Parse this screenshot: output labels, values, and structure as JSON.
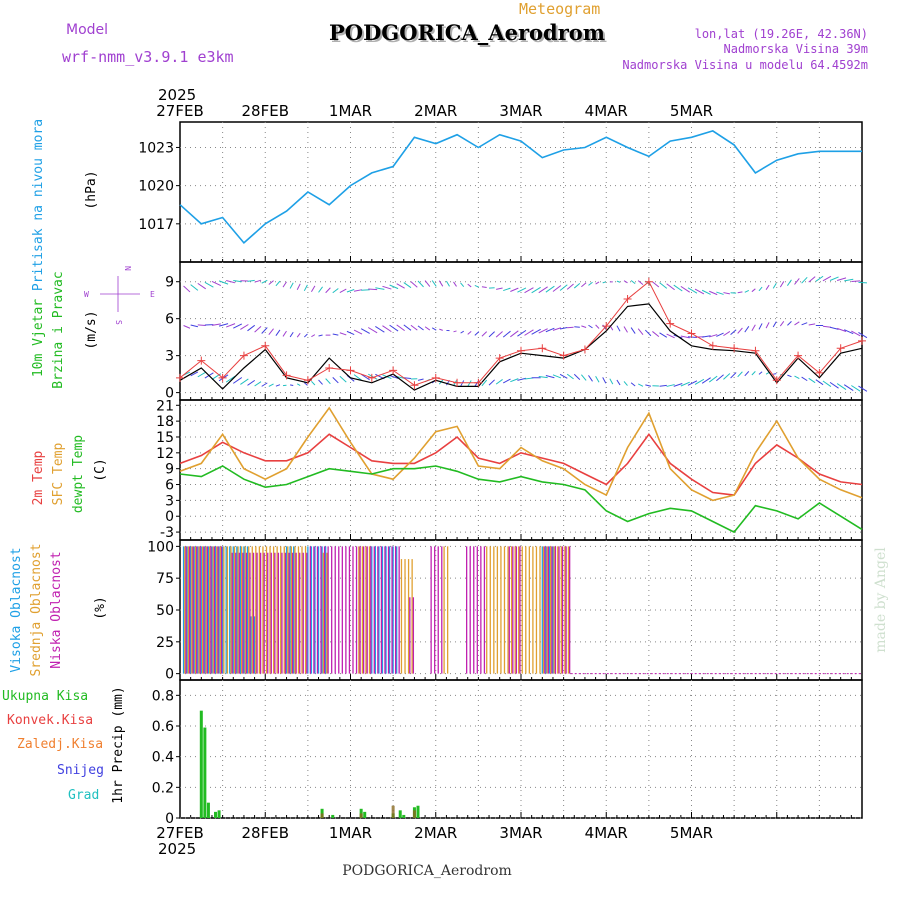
{
  "header": {
    "model_label": "Model",
    "model_name": "wrf-nmm_v3.9.1 e3km",
    "meteogram_label": "Meteogram",
    "station_title": "PODGORICA_Aerodrom",
    "lonlat": "lon,lat (19.26E, 42.36N)",
    "altitude": "Nadmorska Visina 39m",
    "model_altitude": "Nadmorska Visina u modelu 64.4592m",
    "footer_station": "PODGORICA_Aerodrom",
    "watermark": "made by Angel",
    "year": "2025"
  },
  "colors": {
    "pressure": "#1ea0e6",
    "wind_text": "#22bb22",
    "compass": "#a040d0",
    "temp2m": "#e84040",
    "sfc": "#e0a030",
    "dewpt": "#22bb22",
    "high_cloud": "#1ea0e6",
    "mid_cloud": "#e0a030",
    "low_cloud": "#c020b0",
    "precip_total": "#22bb22",
    "precip_conv": "#e84040",
    "precip_frozen": "#f08030",
    "snow": "#4040e0",
    "hail": "#20c0c0"
  },
  "chart_data": {
    "type": "meteogram",
    "x_ticks": [
      "27FEB",
      "28FEB",
      "1MAR",
      "2MAR",
      "3MAR",
      "4MAR",
      "5MAR"
    ],
    "x_units": "hours since 27FEB 00Z",
    "panels": [
      {
        "id": "pressure",
        "type": "line",
        "ylabel_main": "Pritisak na nivou mora",
        "ylabel_unit": "(hPa)",
        "ylim": [
          1014,
          1025
        ],
        "yticks": [
          1017,
          1020,
          1023
        ],
        "series": [
          {
            "name": "Pritisak",
            "x": [
              0,
              6,
              12,
              18,
              24,
              30,
              36,
              42,
              48,
              54,
              60,
              66,
              72,
              78,
              84,
              90,
              96,
              102,
              108,
              114,
              120,
              126,
              132,
              138,
              144,
              150,
              156,
              162,
              168,
              174,
              180,
              186,
              192
            ],
            "values": [
              1018.5,
              1017.0,
              1017.5,
              1015.5,
              1017.0,
              1018.0,
              1019.5,
              1018.5,
              1020.0,
              1021.0,
              1021.5,
              1023.8,
              1023.3,
              1024.0,
              1023.0,
              1024.0,
              1023.5,
              1022.2,
              1022.8,
              1023.0,
              1023.8,
              1023.0,
              1022.3,
              1023.5,
              1023.8,
              1024.3,
              1023.2,
              1021.0,
              1022.0,
              1022.5,
              1022.7,
              1022.7,
              1022.7
            ]
          }
        ]
      },
      {
        "id": "wind",
        "type": "line",
        "ylabel_main": "10m Vjetar",
        "ylabel_sub": "Brzina i Pravac",
        "ylabel_unit": "(m/s)",
        "compass": [
          "W",
          "E",
          "N",
          "S"
        ],
        "ylim": [
          -0.6,
          10.6
        ],
        "yticks": [
          0,
          3,
          6,
          9
        ],
        "series": [
          {
            "name": "Brzina (model)",
            "x": [
              0,
              6,
              12,
              18,
              24,
              30,
              36,
              42,
              48,
              54,
              60,
              66,
              72,
              78,
              84,
              90,
              96,
              102,
              108,
              114,
              120,
              126,
              132,
              138,
              144,
              150,
              156,
              162,
              168,
              174,
              180,
              186,
              192
            ],
            "values": [
              1.0,
              2.0,
              0.3,
              2.0,
              3.5,
              1.2,
              0.8,
              2.8,
              1.2,
              0.8,
              1.5,
              0.2,
              1.0,
              0.5,
              0.5,
              2.5,
              3.2,
              3.0,
              2.8,
              3.5,
              5.0,
              7.0,
              7.2,
              5.0,
              3.8,
              3.5,
              3.4,
              3.2,
              0.8,
              2.8,
              1.2,
              3.2,
              3.6
            ]
          },
          {
            "name": "Udari",
            "x": [
              0,
              6,
              12,
              18,
              24,
              30,
              36,
              42,
              48,
              54,
              60,
              66,
              72,
              78,
              84,
              90,
              96,
              102,
              108,
              114,
              120,
              126,
              132,
              138,
              144,
              150,
              156,
              162,
              168,
              174,
              180,
              186,
              192
            ],
            "values": [
              1.2,
              2.6,
              1.2,
              3.0,
              3.8,
              1.4,
              1.0,
              2.0,
              1.8,
              1.2,
              1.8,
              0.6,
              1.2,
              0.8,
              0.8,
              2.8,
              3.4,
              3.6,
              3.0,
              3.5,
              5.4,
              7.6,
              9.0,
              5.6,
              4.8,
              3.8,
              3.6,
              3.4,
              1.0,
              3.0,
              1.6,
              3.6,
              4.2
            ]
          }
        ]
      },
      {
        "id": "temperature",
        "type": "line",
        "ylabel_main": "2m Temp",
        "ylabel_sfc": "SFC Temp",
        "ylabel_dew": "dewpt Temp",
        "ylabel_unit": "(C)",
        "ylim": [
          -4.5,
          22
        ],
        "yticks": [
          -3,
          0,
          3,
          6,
          9,
          12,
          15,
          18,
          21
        ],
        "series": [
          {
            "name": "2m Temp",
            "x": [
              0,
              6,
              12,
              18,
              24,
              30,
              36,
              42,
              48,
              54,
              60,
              66,
              72,
              78,
              84,
              90,
              96,
              102,
              108,
              114,
              120,
              126,
              132,
              138,
              144,
              150,
              156,
              162,
              168,
              174,
              180,
              186,
              192
            ],
            "values": [
              10.0,
              11.5,
              14.0,
              12.0,
              10.5,
              10.5,
              12.0,
              15.5,
              13.0,
              10.5,
              10.0,
              10.0,
              12.0,
              15.0,
              11.0,
              10.0,
              12.0,
              11.0,
              10.0,
              8.0,
              6.0,
              10.0,
              15.5,
              10.0,
              7.0,
              4.5,
              4.0,
              10.0,
              13.5,
              11.0,
              8.0,
              6.5,
              6.0
            ]
          },
          {
            "name": "SFC Temp",
            "x": [
              0,
              6,
              12,
              18,
              24,
              30,
              36,
              42,
              48,
              54,
              60,
              66,
              72,
              78,
              84,
              90,
              96,
              102,
              108,
              114,
              120,
              126,
              132,
              138,
              144,
              150,
              156,
              162,
              168,
              174,
              180,
              186,
              192
            ],
            "values": [
              8.5,
              10.0,
              15.5,
              9.0,
              7.0,
              9.0,
              15.0,
              20.5,
              14.0,
              8.0,
              7.0,
              11.0,
              16.0,
              17.0,
              9.5,
              9.0,
              13.0,
              10.5,
              9.0,
              6.0,
              4.0,
              13.0,
              19.5,
              9.0,
              5.0,
              3.0,
              4.0,
              12.0,
              18.0,
              11.0,
              7.0,
              5.0,
              3.5
            ]
          },
          {
            "name": "dewpt Temp",
            "x": [
              0,
              6,
              12,
              18,
              24,
              30,
              36,
              42,
              48,
              54,
              60,
              66,
              72,
              78,
              84,
              90,
              96,
              102,
              108,
              114,
              120,
              126,
              132,
              138,
              144,
              150,
              156,
              162,
              168,
              174,
              180,
              186,
              192
            ],
            "values": [
              8.0,
              7.5,
              9.5,
              7.0,
              5.5,
              6.0,
              7.5,
              9.0,
              8.5,
              8.0,
              9.0,
              9.0,
              9.5,
              8.5,
              7.0,
              6.5,
              7.5,
              6.5,
              6.0,
              5.0,
              1.0,
              -1.0,
              0.5,
              1.5,
              1.0,
              -1.0,
              -3.0,
              2.0,
              1.0,
              -0.5,
              2.5,
              0.0,
              -2.5
            ]
          }
        ]
      },
      {
        "id": "cloud",
        "type": "bar",
        "ylabel_high": "Visoka Oblacnost",
        "ylabel_mid": "Srednja Oblacnost",
        "ylabel_low": "Niska Oblacnost",
        "ylabel_unit": "(%)",
        "ylim": [
          -5,
          105
        ],
        "yticks": [
          0,
          25,
          50,
          75,
          100
        ],
        "description": "Cloud cover columns at 1-hour resolution",
        "series": [
          {
            "name": "Visoka",
            "segments": [
              [
                1,
                20,
                100
              ],
              [
                20,
                22,
                45
              ],
              [
                30,
                33,
                100
              ],
              [
                36,
                42,
                100
              ],
              [
                54,
                62,
                100
              ],
              [
                102,
                106,
                100
              ]
            ]
          },
          {
            "name": "Srednja",
            "segments": [
              [
                1,
                36,
                100
              ],
              [
                40,
                42,
                95
              ],
              [
                50,
                54,
                100
              ],
              [
                62,
                66,
                90
              ],
              [
                74,
                76,
                100
              ],
              [
                86,
                106,
                100
              ],
              [
                106,
                110,
                100
              ]
            ]
          },
          {
            "name": "Niska",
            "segments": [
              [
                1,
                12,
                100
              ],
              [
                14,
                36,
                95
              ],
              [
                36,
                62,
                100
              ],
              [
                64,
                66,
                60
              ],
              [
                70,
                74,
                100
              ],
              [
                80,
                86,
                100
              ],
              [
                92,
                96,
                100
              ],
              [
                102,
                110,
                100
              ]
            ]
          }
        ]
      },
      {
        "id": "precip",
        "type": "bar",
        "ylabel_total": "Ukupna Kisa",
        "ylabel_conv": "Konvek.Kisa",
        "ylabel_frozen": "Zaledj.Kisa",
        "ylabel_snow": "Snijeg",
        "ylabel_hail": "Grad",
        "ylabel_unit": "1hr Precip (mm)",
        "ylim": [
          0,
          0.9
        ],
        "yticks": [
          0,
          0.2,
          0.4,
          0.6,
          0.8
        ],
        "ytick_labels": [
          "0",
          "0.2",
          "0.4",
          "0.6",
          "0.8"
        ],
        "series": [
          {
            "name": "Ukupna Kisa",
            "x": [
              6,
              7,
              8,
              10,
              11,
              40,
              43,
              51,
              52,
              60,
              62,
              63,
              66,
              67
            ],
            "values": [
              0.7,
              0.59,
              0.1,
              0.04,
              0.05,
              0.06,
              0.02,
              0.06,
              0.04,
              0.03,
              0.05,
              0.02,
              0.07,
              0.08
            ]
          },
          {
            "name": "Konvek.Kisa",
            "x": [
              40,
              51,
              60,
              66
            ],
            "values": [
              0.03,
              0.03,
              0.08,
              0.05
            ]
          }
        ]
      }
    ]
  }
}
